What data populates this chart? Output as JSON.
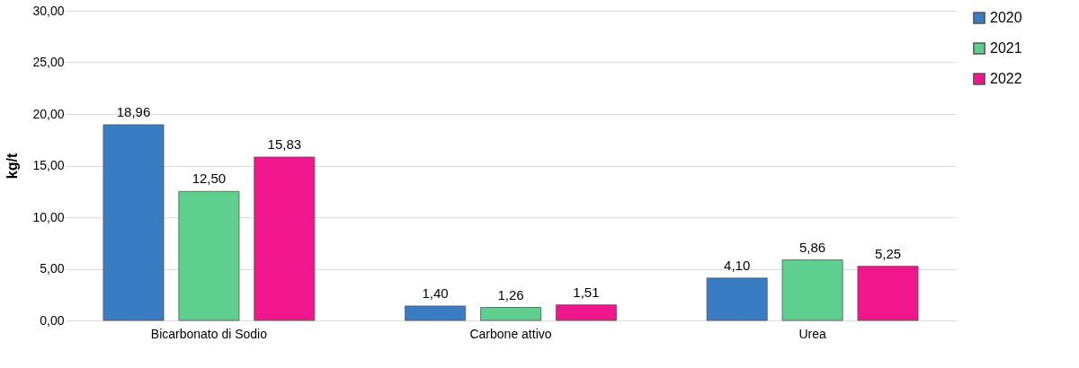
{
  "chart_data": {
    "type": "bar",
    "ylabel": "kg/t",
    "categories": [
      "Bicarbonato di Sodio",
      "Carbone attivo",
      "Urea"
    ],
    "series": [
      {
        "name": "2020",
        "color": "#3a7cc4",
        "values": [
          18.96,
          1.4,
          4.1
        ],
        "value_labels": [
          "18,96",
          "1,40",
          "4,10"
        ]
      },
      {
        "name": "2021",
        "color": "#5fcf8f",
        "values": [
          12.5,
          1.26,
          5.86
        ],
        "value_labels": [
          "12,50",
          "1,26",
          "5,86"
        ]
      },
      {
        "name": "2022",
        "color": "#f0168c",
        "values": [
          15.83,
          1.51,
          5.25
        ],
        "value_labels": [
          "15,83",
          "1,51",
          "5,25"
        ]
      }
    ],
    "ylim": [
      0,
      30
    ],
    "yticks": [
      {
        "value": 0,
        "label": "0,00"
      },
      {
        "value": 5,
        "label": "5,00"
      },
      {
        "value": 10,
        "label": "10,00"
      },
      {
        "value": 15,
        "label": "15,00"
      },
      {
        "value": 20,
        "label": "20,00"
      },
      {
        "value": 25,
        "label": "25,00"
      },
      {
        "value": 30,
        "label": "30,00"
      }
    ],
    "grid": "y",
    "legend": "top right"
  }
}
